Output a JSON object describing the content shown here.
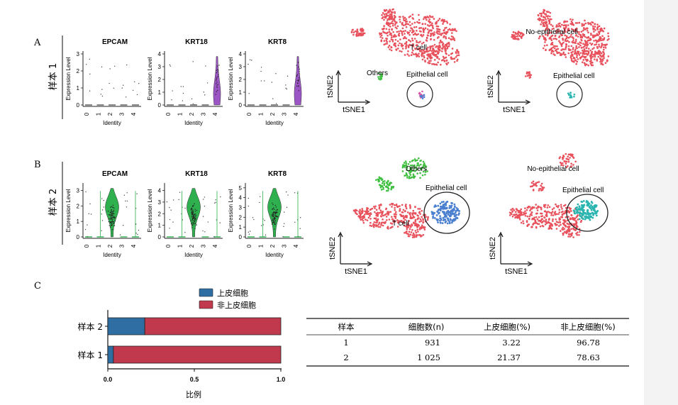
{
  "panels": {
    "A": "A",
    "B": "B",
    "C": "C"
  },
  "rows": [
    {
      "label": "样本 1",
      "violin_axis": {
        "ylabel": "Expression Level",
        "xlabel": "Identity",
        "x_ticks": [
          "0",
          "1",
          "2",
          "3",
          "4"
        ]
      },
      "genes": [
        {
          "name": "EPCAM",
          "yticks": [
            "0",
            "1",
            "2",
            "3"
          ],
          "ymax": 3,
          "peak_cluster": "none"
        },
        {
          "name": "KRT18",
          "yticks": [
            "0",
            "1",
            "2",
            "3",
            "4"
          ],
          "ymax": 4,
          "peak_cluster": "4"
        },
        {
          "name": "KRT8",
          "yticks": [
            "0",
            "1",
            "2",
            "3",
            "4"
          ],
          "ymax": 4,
          "peak_cluster": "4"
        }
      ],
      "tsne": {
        "xlabel": "tSNE1",
        "ylabel": "tSNE2",
        "plot1_labels": {
          "t_cell": "T cell",
          "others": "Others",
          "epithelial": "Epithelial cell"
        },
        "plot2_labels": {
          "non_epithelial": "No-epithelial cell",
          "epithelial": "Epithelial cell"
        }
      }
    },
    {
      "label": "样本 2",
      "violin_axis": {
        "ylabel": "Expression Level",
        "xlabel": "Identity",
        "x_ticks": [
          "0",
          "1",
          "2",
          "3",
          "4"
        ]
      },
      "genes": [
        {
          "name": "EPCAM",
          "yticks": [
            "0",
            "1",
            "2",
            "3"
          ],
          "ymax": 3.3,
          "peak_cluster": "2"
        },
        {
          "name": "KRT18",
          "yticks": [
            "0",
            "1",
            "2",
            "3",
            "4"
          ],
          "ymax": 4.4,
          "peak_cluster": "2"
        },
        {
          "name": "KRT8",
          "yticks": [
            "0",
            "1",
            "2",
            "3",
            "4",
            "5"
          ],
          "ymax": 5.2,
          "peak_cluster": "2"
        }
      ],
      "tsne": {
        "xlabel": "tSNE1",
        "ylabel": "tSNE2",
        "plot1_labels": {
          "others": "Others",
          "epithelial": "Epithelial cell",
          "t_cell": "T cell"
        },
        "plot2_labels": {
          "non_epithelial": "No-epithelial cell",
          "epithelial": "Epithelial cell"
        }
      }
    }
  ],
  "colors": {
    "violin_row1": "#9b55c4",
    "violin_row2": "#2eb04f",
    "tsne_red": "#e8505b",
    "others_green": "#3fbf3f",
    "epi_blue": "#4a7fd0",
    "epi_teal": "#2ab5b0",
    "epi_pink": "#d85aa8",
    "bar_epi": "#2f6ea3",
    "bar_non": "#c0394d"
  },
  "chart_data": {
    "type": "bar",
    "orientation": "horizontal",
    "stacked": true,
    "categories": [
      "样本 2",
      "样本 1"
    ],
    "series": [
      {
        "name": "上皮细胞",
        "values": [
          0.2137,
          0.0322
        ]
      },
      {
        "name": "非上皮细胞",
        "values": [
          0.7863,
          0.9678
        ]
      }
    ],
    "xlim": [
      0,
      1
    ],
    "xticks": [
      "0.0",
      "0.5",
      "1.0"
    ],
    "xlabel": "比例",
    "legend_position": "top"
  },
  "table": {
    "headers": [
      "样本",
      "细胞数(n)",
      "上皮细胞(%)",
      "非上皮细胞(%)"
    ],
    "rows": [
      [
        "1",
        "931",
        "3.22",
        "96.78"
      ],
      [
        "2",
        "1 025",
        "21.37",
        "78.63"
      ]
    ]
  }
}
